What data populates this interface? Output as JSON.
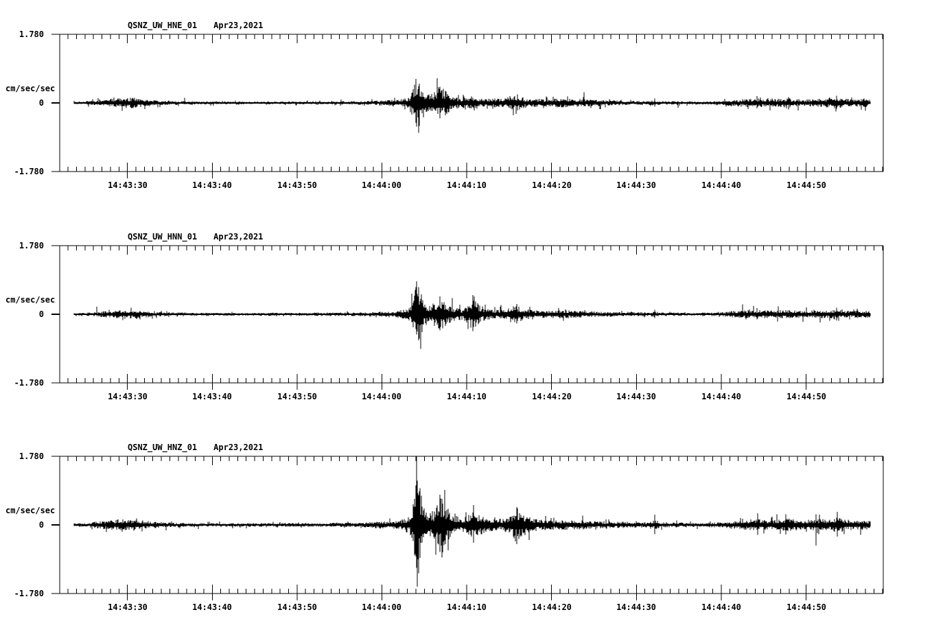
{
  "page": {
    "background_color": "#ffffff",
    "line_color": "#000000"
  },
  "panels": [
    {
      "id": "HNE",
      "station_label": "QSNZ_UW_HNE_01",
      "date_label": "Apr23,2021",
      "y_top_label": "1.780",
      "y_zero_label": "0",
      "y_bottom_label": "-1.780",
      "units_label": "cm/sec/sec"
    },
    {
      "id": "HNN",
      "station_label": "QSNZ_UW_HNN_01",
      "date_label": "Apr23,2021",
      "y_top_label": "1.780",
      "y_zero_label": "0",
      "y_bottom_label": "-1.780",
      "units_label": "cm/sec/sec"
    },
    {
      "id": "HNZ",
      "station_label": "QSNZ_UW_HNZ_01",
      "date_label": "Apr23,2021",
      "y_top_label": "1.780",
      "y_zero_label": "0",
      "y_bottom_label": "-1.780",
      "units_label": "cm/sec/sec"
    }
  ],
  "time_axis": {
    "time_reference": "14:43:00",
    "axis_start_sec": 22.1,
    "axis_end_sec": 119.1,
    "minor_tick_interval_sec": 1,
    "major_tick_interval_sec": 10,
    "major_ticks": [
      {
        "sec": 30,
        "label": "14:43:30"
      },
      {
        "sec": 40,
        "label": "14:43:40"
      },
      {
        "sec": 50,
        "label": "14:43:50"
      },
      {
        "sec": 60,
        "label": "14:44:00"
      },
      {
        "sec": 70,
        "label": "14:44:10"
      },
      {
        "sec": 80,
        "label": "14:44:20"
      },
      {
        "sec": 90,
        "label": "14:44:30"
      },
      {
        "sec": 100,
        "label": "14:44:40"
      },
      {
        "sec": 110,
        "label": "14:44:50"
      }
    ]
  },
  "chart_data": [
    {
      "type": "line",
      "title": "QSNZ_UW_HNE_01  Apr23,2021",
      "ylabel": "cm/sec/sec",
      "ylim": [
        -1.78,
        1.78
      ],
      "x_tick_labels": [
        "14:43:30",
        "14:43:40",
        "14:43:50",
        "14:44:00",
        "14:44:10",
        "14:44:20",
        "14:44:30",
        "14:44:40",
        "14:44:50"
      ],
      "series_representation": "amplitude_envelope_sec_after_14:43:00",
      "trace_start_sec": 23.7,
      "trace_end_sec": 117.6,
      "envelope": [
        [
          23.7,
          0.03
        ],
        [
          25,
          0.04
        ],
        [
          27,
          0.08
        ],
        [
          28.5,
          0.12
        ],
        [
          30.5,
          0.14
        ],
        [
          32,
          0.1
        ],
        [
          33.5,
          0.07
        ],
        [
          35,
          0.05
        ],
        [
          38,
          0.04
        ],
        [
          44,
          0.035
        ],
        [
          50,
          0.04
        ],
        [
          55,
          0.045
        ],
        [
          58,
          0.05
        ],
        [
          60,
          0.07
        ],
        [
          62,
          0.09
        ],
        [
          63.3,
          0.14
        ],
        [
          63.7,
          0.45
        ],
        [
          64.1,
          0.62
        ],
        [
          64.6,
          0.5
        ],
        [
          65.1,
          0.3
        ],
        [
          65.7,
          0.22
        ],
        [
          66.3,
          0.3
        ],
        [
          66.7,
          0.42
        ],
        [
          67.2,
          0.38
        ],
        [
          67.8,
          0.26
        ],
        [
          68.5,
          0.17
        ],
        [
          69.4,
          0.13
        ],
        [
          70.2,
          0.16
        ],
        [
          70.8,
          0.18
        ],
        [
          71.5,
          0.13
        ],
        [
          72.5,
          0.11
        ],
        [
          73.5,
          0.12
        ],
        [
          74.5,
          0.12
        ],
        [
          75.3,
          0.17
        ],
        [
          76,
          0.19
        ],
        [
          76.8,
          0.13
        ],
        [
          78,
          0.11
        ],
        [
          79.5,
          0.1
        ],
        [
          80.8,
          0.12
        ],
        [
          81.8,
          0.13
        ],
        [
          83,
          0.1
        ],
        [
          85,
          0.08
        ],
        [
          87,
          0.07
        ],
        [
          89,
          0.06
        ],
        [
          91.5,
          0.05
        ],
        [
          92.2,
          0.08
        ],
        [
          93,
          0.05
        ],
        [
          95,
          0.045
        ],
        [
          97.5,
          0.04
        ],
        [
          100,
          0.05
        ],
        [
          101,
          0.08
        ],
        [
          102.5,
          0.1
        ],
        [
          104,
          0.12
        ],
        [
          105,
          0.11
        ],
        [
          106.5,
          0.1
        ],
        [
          107.8,
          0.13
        ],
        [
          109,
          0.1
        ],
        [
          110.2,
          0.09
        ],
        [
          111.3,
          0.11
        ],
        [
          112.4,
          0.12
        ],
        [
          113.5,
          0.14
        ],
        [
          114.6,
          0.11
        ],
        [
          115.8,
          0.1
        ],
        [
          116.8,
          0.11
        ],
        [
          117.6,
          0.09
        ]
      ],
      "spikes": [
        [
          64.0,
          0.62,
          0.52
        ],
        [
          64.4,
          0.5,
          0.6
        ],
        [
          66.8,
          0.42,
          0.4
        ],
        [
          76.0,
          0.22,
          0.2
        ],
        [
          92.2,
          0.12,
          0.1
        ],
        [
          104.2,
          0.18,
          0.14
        ],
        [
          107.9,
          0.15,
          0.17
        ],
        [
          113.6,
          0.19,
          0.15
        ]
      ]
    },
    {
      "type": "line",
      "title": "QSNZ_UW_HNN_01  Apr23,2021",
      "ylabel": "cm/sec/sec",
      "ylim": [
        -1.78,
        1.78
      ],
      "x_tick_labels": [
        "14:43:30",
        "14:43:40",
        "14:43:50",
        "14:44:00",
        "14:44:10",
        "14:44:20",
        "14:44:30",
        "14:44:40",
        "14:44:50"
      ],
      "series_representation": "amplitude_envelope_sec_after_14:43:00",
      "trace_start_sec": 23.7,
      "trace_end_sec": 117.6,
      "envelope": [
        [
          23.7,
          0.03
        ],
        [
          25,
          0.04
        ],
        [
          27,
          0.07
        ],
        [
          28.5,
          0.1
        ],
        [
          30.5,
          0.11
        ],
        [
          32,
          0.09
        ],
        [
          33.5,
          0.06
        ],
        [
          35,
          0.05
        ],
        [
          38,
          0.04
        ],
        [
          44,
          0.035
        ],
        [
          50,
          0.04
        ],
        [
          55,
          0.045
        ],
        [
          58,
          0.05
        ],
        [
          60,
          0.07
        ],
        [
          62,
          0.09
        ],
        [
          63.3,
          0.16
        ],
        [
          63.7,
          0.5
        ],
        [
          64.1,
          0.8
        ],
        [
          64.5,
          0.6
        ],
        [
          65,
          0.35
        ],
        [
          65.6,
          0.25
        ],
        [
          66.2,
          0.32
        ],
        [
          66.7,
          0.45
        ],
        [
          67.2,
          0.4
        ],
        [
          67.8,
          0.28
        ],
        [
          68.5,
          0.18
        ],
        [
          69.4,
          0.14
        ],
        [
          70.2,
          0.25
        ],
        [
          70.7,
          0.45
        ],
        [
          71.2,
          0.32
        ],
        [
          71.8,
          0.18
        ],
        [
          72.8,
          0.13
        ],
        [
          73.8,
          0.11
        ],
        [
          74.6,
          0.14
        ],
        [
          75.4,
          0.24
        ],
        [
          76.1,
          0.2
        ],
        [
          77,
          0.13
        ],
        [
          78.2,
          0.11
        ],
        [
          79.5,
          0.1
        ],
        [
          81,
          0.11
        ],
        [
          82.5,
          0.1
        ],
        [
          84,
          0.08
        ],
        [
          86,
          0.07
        ],
        [
          88,
          0.065
        ],
        [
          90,
          0.055
        ],
        [
          91.5,
          0.05
        ],
        [
          92.2,
          0.08
        ],
        [
          93,
          0.05
        ],
        [
          95,
          0.045
        ],
        [
          97.5,
          0.04
        ],
        [
          100,
          0.05
        ],
        [
          101,
          0.08
        ],
        [
          102.5,
          0.1
        ],
        [
          104,
          0.11
        ],
        [
          105,
          0.1
        ],
        [
          106.5,
          0.1
        ],
        [
          107.8,
          0.12
        ],
        [
          109,
          0.1
        ],
        [
          110.2,
          0.09
        ],
        [
          111.3,
          0.11
        ],
        [
          112.4,
          0.11
        ],
        [
          113.5,
          0.13
        ],
        [
          114.6,
          0.1
        ],
        [
          115.8,
          0.1
        ],
        [
          116.8,
          0.1
        ],
        [
          117.6,
          0.09
        ]
      ],
      "spikes": [
        [
          64.05,
          0.85,
          0.5
        ],
        [
          64.3,
          0.7,
          0.55
        ],
        [
          64.55,
          0.4,
          0.9
        ],
        [
          66.85,
          0.46,
          0.42
        ],
        [
          70.75,
          0.5,
          0.44
        ],
        [
          75.9,
          0.27,
          0.24
        ],
        [
          92.2,
          0.12,
          0.1
        ],
        [
          104.2,
          0.16,
          0.13
        ],
        [
          113.6,
          0.17,
          0.14
        ]
      ]
    },
    {
      "type": "line",
      "title": "QSNZ_UW_HNZ_01  Apr23,2021",
      "ylabel": "cm/sec/sec",
      "ylim": [
        -1.78,
        1.78
      ],
      "x_tick_labels": [
        "14:43:30",
        "14:43:40",
        "14:43:50",
        "14:44:00",
        "14:44:10",
        "14:44:20",
        "14:44:30",
        "14:44:40",
        "14:44:50"
      ],
      "series_representation": "amplitude_envelope_sec_after_14:43:00",
      "trace_start_sec": 23.7,
      "trace_end_sec": 117.6,
      "envelope": [
        [
          23.7,
          0.04
        ],
        [
          25,
          0.05
        ],
        [
          26.5,
          0.09
        ],
        [
          28,
          0.13
        ],
        [
          30,
          0.15
        ],
        [
          31.5,
          0.12
        ],
        [
          33,
          0.09
        ],
        [
          35,
          0.06
        ],
        [
          38,
          0.05
        ],
        [
          44,
          0.045
        ],
        [
          50,
          0.05
        ],
        [
          55,
          0.055
        ],
        [
          58,
          0.065
        ],
        [
          60,
          0.09
        ],
        [
          62,
          0.11
        ],
        [
          63.3,
          0.22
        ],
        [
          63.7,
          0.7
        ],
        [
          64.1,
          1.25
        ],
        [
          64.4,
          0.95
        ],
        [
          64.9,
          0.6
        ],
        [
          65.5,
          0.38
        ],
        [
          66.1,
          0.32
        ],
        [
          66.5,
          0.55
        ],
        [
          66.9,
          0.72
        ],
        [
          67.4,
          0.55
        ],
        [
          68,
          0.38
        ],
        [
          68.7,
          0.25
        ],
        [
          69.5,
          0.18
        ],
        [
          70.3,
          0.28
        ],
        [
          70.8,
          0.4
        ],
        [
          71.4,
          0.28
        ],
        [
          72.2,
          0.2
        ],
        [
          73.2,
          0.16
        ],
        [
          74.2,
          0.15
        ],
        [
          74.9,
          0.22
        ],
        [
          75.6,
          0.35
        ],
        [
          76.2,
          0.38
        ],
        [
          76.9,
          0.28
        ],
        [
          77.8,
          0.18
        ],
        [
          79,
          0.14
        ],
        [
          80.5,
          0.13
        ],
        [
          82,
          0.13
        ],
        [
          83.5,
          0.12
        ],
        [
          85,
          0.1
        ],
        [
          87,
          0.09
        ],
        [
          89,
          0.08
        ],
        [
          91.3,
          0.07
        ],
        [
          92.2,
          0.13
        ],
        [
          93,
          0.07
        ],
        [
          95,
          0.06
        ],
        [
          97.5,
          0.055
        ],
        [
          100,
          0.07
        ],
        [
          101,
          0.1
        ],
        [
          102.5,
          0.12
        ],
        [
          104,
          0.16
        ],
        [
          105.2,
          0.13
        ],
        [
          106.5,
          0.13
        ],
        [
          107.7,
          0.17
        ],
        [
          109,
          0.13
        ],
        [
          110.3,
          0.12
        ],
        [
          111.4,
          0.16
        ],
        [
          112.5,
          0.14
        ],
        [
          113.6,
          0.19
        ],
        [
          114.8,
          0.14
        ],
        [
          116,
          0.13
        ],
        [
          117,
          0.13
        ],
        [
          117.6,
          0.11
        ]
      ],
      "spikes": [
        [
          64.05,
          1.78,
          1.1
        ],
        [
          64.2,
          1.15,
          1.6
        ],
        [
          64.5,
          0.95,
          0.85
        ],
        [
          66.8,
          0.78,
          0.7
        ],
        [
          67.05,
          0.68,
          0.75
        ],
        [
          70.8,
          0.52,
          0.46
        ],
        [
          75.9,
          0.46,
          0.5
        ],
        [
          92.2,
          0.27,
          0.24
        ],
        [
          104.3,
          0.3,
          0.26
        ],
        [
          107.6,
          0.28,
          0.25
        ],
        [
          111.2,
          0.28,
          0.53
        ],
        [
          113.7,
          0.34,
          0.3
        ]
      ]
    }
  ]
}
